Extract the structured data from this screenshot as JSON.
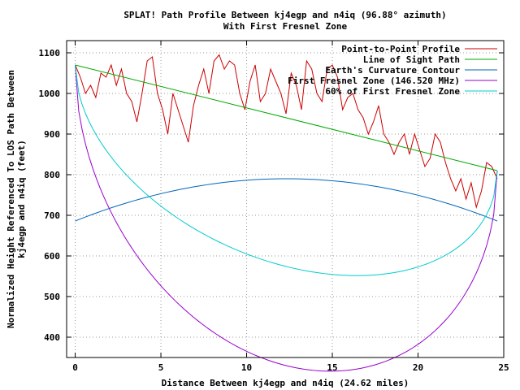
{
  "chart_data": {
    "type": "line",
    "title": "SPLAT! Path Profile Between kj4egp and n4iq (96.88° azimuth)",
    "subtitle": "With First Fresnel Zone",
    "xlabel": "Distance Between kj4egp and n4iq (24.62 miles)",
    "ylabel_lines": [
      "Normalized Height Referenced To LOS Path Between",
      "kj4egp and n4iq (feet)"
    ],
    "xlim": [
      -0.5,
      25
    ],
    "ylim": [
      350,
      1130
    ],
    "xticks": [
      0,
      5,
      10,
      15,
      20,
      25
    ],
    "yticks": [
      400,
      500,
      600,
      700,
      800,
      900,
      1000,
      1100
    ],
    "grid": true,
    "legend_position": "top-right",
    "series": [
      {
        "name": "Point-to-Point Profile",
        "color": "#cc0000",
        "kind": "profile",
        "x": [
          0,
          0.3,
          0.6,
          0.9,
          1.2,
          1.5,
          1.8,
          2.1,
          2.4,
          2.7,
          3.0,
          3.3,
          3.6,
          3.9,
          4.2,
          4.5,
          4.8,
          5.1,
          5.4,
          5.7,
          6.0,
          6.3,
          6.6,
          6.9,
          7.2,
          7.5,
          7.8,
          8.1,
          8.4,
          8.7,
          9.0,
          9.3,
          9.6,
          9.9,
          10.2,
          10.5,
          10.8,
          11.1,
          11.4,
          11.7,
          12.0,
          12.3,
          12.6,
          12.9,
          13.2,
          13.5,
          13.8,
          14.1,
          14.4,
          14.7,
          15.0,
          15.3,
          15.6,
          15.9,
          16.2,
          16.5,
          16.8,
          17.1,
          17.4,
          17.7,
          18.0,
          18.3,
          18.6,
          18.9,
          19.2,
          19.5,
          19.8,
          20.1,
          20.4,
          20.7,
          21.0,
          21.3,
          21.6,
          21.9,
          22.2,
          22.5,
          22.8,
          23.1,
          23.4,
          23.7,
          24.0,
          24.3,
          24.62
        ],
        "y": [
          1070,
          1040,
          1000,
          1020,
          990,
          1050,
          1040,
          1070,
          1020,
          1060,
          1000,
          980,
          930,
          1000,
          1080,
          1090,
          1000,
          960,
          900,
          1000,
          960,
          920,
          880,
          970,
          1020,
          1060,
          1000,
          1080,
          1095,
          1060,
          1080,
          1070,
          1000,
          960,
          1030,
          1070,
          980,
          1000,
          1060,
          1030,
          1000,
          950,
          1050,
          1020,
          960,
          1080,
          1060,
          1000,
          980,
          1060,
          1070,
          1040,
          960,
          990,
          1000,
          960,
          940,
          900,
          930,
          970,
          900,
          880,
          850,
          880,
          900,
          850,
          900,
          860,
          820,
          840,
          900,
          880,
          830,
          790,
          760,
          790,
          740,
          780,
          720,
          760,
          830,
          820,
          790
        ]
      },
      {
        "name": "Line of Sight Path",
        "color": "#00aa00",
        "kind": "linear",
        "start": [
          0,
          1070
        ],
        "end": [
          24.62,
          810
        ]
      },
      {
        "name": "Earth's Curvature Contour",
        "color": "#0066bb",
        "kind": "curvature",
        "start": [
          0,
          686
        ],
        "end": [
          24.62,
          686
        ],
        "peak": 790
      },
      {
        "name": "First Fresnel Zone (146.520 MHz)",
        "color": "#9900cc",
        "kind": "fresnel",
        "radius_mid": 610
      },
      {
        "name": "60% of First Fresnel Zone",
        "color": "#00cccc",
        "kind": "fresnel",
        "radius_mid": 366
      }
    ]
  }
}
